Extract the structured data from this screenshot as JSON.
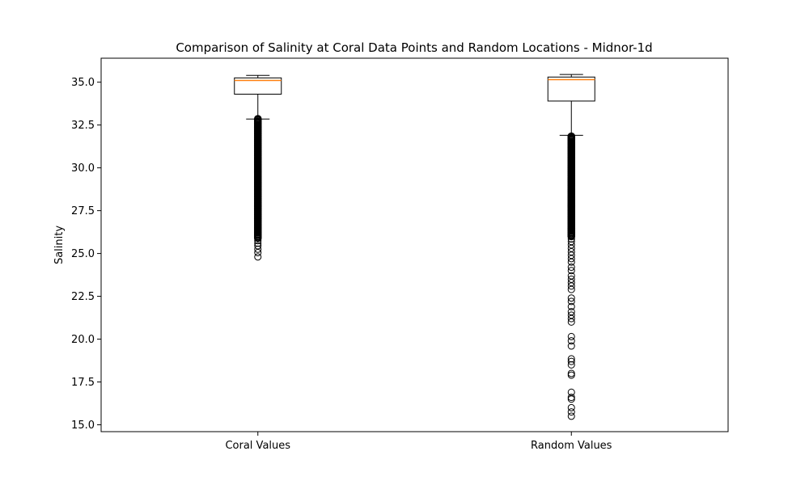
{
  "chart_data": {
    "type": "boxplot",
    "title": "Comparison of Salinity at Coral Data Points and Random Locations - Midnor-1d",
    "xlabel": "",
    "ylabel": "Salinity",
    "ylim": [
      14.6,
      36.4
    ],
    "yticks": [
      "15.0",
      "17.5",
      "20.0",
      "22.5",
      "25.0",
      "27.5",
      "30.0",
      "32.5",
      "35.0"
    ],
    "categories": [
      "Coral Values",
      "Random Values"
    ],
    "grid": false,
    "colors": {
      "box": "#000000",
      "median": "#ff7f0e",
      "background": "#ffffff"
    },
    "boxes": [
      {
        "name": "Coral Values",
        "whisker_low": 32.85,
        "q1": 34.3,
        "median": 35.1,
        "q3": 35.25,
        "whisker_high": 35.4,
        "outlier_band": [
          25.9,
          32.9
        ],
        "outliers": [
          24.8,
          25.05,
          25.25,
          25.45,
          25.6,
          25.75
        ]
      },
      {
        "name": "Random Values",
        "whisker_low": 31.9,
        "q1": 33.9,
        "median": 35.15,
        "q3": 35.3,
        "whisker_high": 35.45,
        "outlier_band": [
          26.0,
          31.9
        ],
        "outliers": [
          15.5,
          15.75,
          16.0,
          16.5,
          16.6,
          16.9,
          17.9,
          18.0,
          18.5,
          18.7,
          18.85,
          19.6,
          19.9,
          20.15,
          21.0,
          21.2,
          21.4,
          21.6,
          21.9,
          22.2,
          22.4,
          22.9,
          23.1,
          23.3,
          23.5,
          23.7,
          24.0,
          24.2,
          24.5,
          24.7,
          24.9,
          25.1,
          25.3,
          25.5,
          25.7,
          25.85
        ]
      }
    ]
  }
}
